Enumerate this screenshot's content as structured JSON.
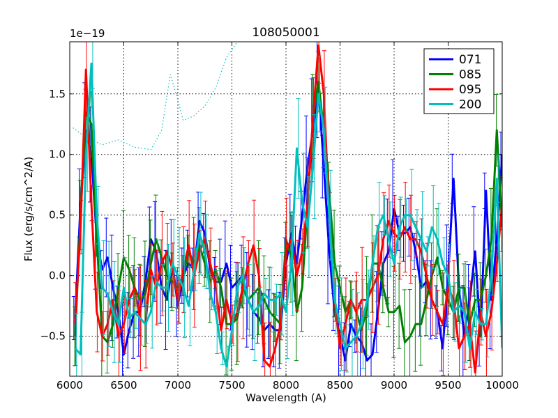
{
  "chart_data": {
    "type": "line",
    "title": "108050001",
    "xlabel": "Wavelength (A)",
    "ylabel": "Flux (erg/s/cm^2/A)",
    "offset_label": "1e−19",
    "xlim": [
      6000,
      10000
    ],
    "ylim": [
      -0.83,
      1.93
    ],
    "x_ticks": [
      6000,
      6500,
      7000,
      7500,
      8000,
      8500,
      9000,
      9500,
      10000
    ],
    "y_ticks": [
      -0.5,
      0.0,
      0.5,
      1.0,
      1.5
    ],
    "y_tick_labels": [
      "−0.5",
      "0.0",
      "0.5",
      "1.0",
      "1.5"
    ],
    "grid": true,
    "legend_position": "top-right",
    "error_bars": true,
    "sky_spectrum": {
      "style": "dotted",
      "color": "#00bfbf",
      "points": [
        [
          6030,
          1.22
        ],
        [
          6150,
          1.14
        ],
        [
          6300,
          1.08
        ],
        [
          6450,
          1.12
        ],
        [
          6600,
          1.06
        ],
        [
          6750,
          1.04
        ],
        [
          6850,
          1.2
        ],
        [
          6930,
          1.66
        ],
        [
          7000,
          1.45
        ],
        [
          7050,
          1.28
        ],
        [
          7150,
          1.32
        ],
        [
          7250,
          1.4
        ],
        [
          7350,
          1.55
        ],
        [
          7450,
          1.8
        ],
        [
          7550,
          1.93
        ]
      ]
    },
    "series": [
      {
        "name": "071",
        "color": "#0000ff",
        "x": [
          6050,
          6100,
          6150,
          6200,
          6250,
          6300,
          6350,
          6400,
          6450,
          6500,
          6550,
          6600,
          6650,
          6700,
          6750,
          6800,
          6850,
          6900,
          6950,
          7000,
          7050,
          7100,
          7150,
          7200,
          7250,
          7300,
          7350,
          7400,
          7450,
          7500,
          7550,
          7600,
          7650,
          7700,
          7750,
          7800,
          7850,
          7900,
          7950,
          8000,
          8050,
          8100,
          8150,
          8200,
          8250,
          8300,
          8350,
          8400,
          8450,
          8500,
          8550,
          8600,
          8650,
          8700,
          8750,
          8800,
          8850,
          8900,
          8950,
          9000,
          9050,
          9100,
          9150,
          9200,
          9250,
          9300,
          9350,
          9400,
          9450,
          9500,
          9550,
          9600,
          9650,
          9700,
          9750,
          9800,
          9850,
          9900,
          9950,
          10000
        ],
        "values": [
          -0.35,
          0.6,
          1.2,
          1.0,
          0.3,
          0.05,
          0.15,
          -0.1,
          -0.3,
          -0.65,
          -0.45,
          -0.3,
          -0.3,
          -0.05,
          0.3,
          0.2,
          -0.1,
          -0.2,
          0.1,
          -0.25,
          0.0,
          0.1,
          0.05,
          0.45,
          0.35,
          0.05,
          -0.05,
          -0.05,
          0.1,
          -0.1,
          -0.05,
          0.0,
          -0.2,
          -0.3,
          -0.35,
          -0.45,
          -0.4,
          -0.45,
          -0.45,
          0.1,
          0.35,
          0.1,
          0.5,
          0.9,
          1.2,
          1.55,
          0.9,
          0.2,
          -0.3,
          -0.5,
          -0.7,
          -0.4,
          -0.5,
          -0.55,
          -0.7,
          -0.65,
          -0.3,
          0.1,
          0.2,
          0.55,
          0.35,
          0.35,
          0.4,
          0.2,
          -0.1,
          -0.05,
          -0.2,
          -0.3,
          -0.6,
          0.0,
          0.8,
          -0.1,
          -0.5,
          -0.2,
          0.2,
          -0.5,
          0.7,
          -0.2,
          0.3,
          1.0
        ]
      },
      {
        "name": "085",
        "color": "#008000",
        "x": [
          6050,
          6100,
          6150,
          6200,
          6250,
          6300,
          6350,
          6400,
          6450,
          6500,
          6550,
          6600,
          6650,
          6700,
          6750,
          6800,
          6850,
          6900,
          6950,
          7000,
          7050,
          7100,
          7150,
          7200,
          7250,
          7300,
          7350,
          7400,
          7450,
          7500,
          7550,
          7600,
          7650,
          7700,
          7750,
          7800,
          7850,
          7900,
          7950,
          8000,
          8050,
          8100,
          8150,
          8200,
          8250,
          8300,
          8350,
          8400,
          8450,
          8500,
          8550,
          8600,
          8650,
          8700,
          8750,
          8800,
          8850,
          8900,
          8950,
          9000,
          9050,
          9100,
          9150,
          9200,
          9250,
          9300,
          9350,
          9400,
          9450,
          9500,
          9550,
          9600,
          9650,
          9700,
          9750,
          9800,
          9850,
          9900,
          9950,
          10000
        ],
        "values": [
          -0.5,
          0.5,
          1.35,
          1.25,
          0.3,
          -0.5,
          -0.55,
          -0.4,
          -0.1,
          0.15,
          0.05,
          -0.1,
          -0.2,
          -0.15,
          0.1,
          0.3,
          0.15,
          0.0,
          -0.05,
          -0.1,
          0.0,
          0.2,
          0.1,
          0.25,
          0.1,
          -0.05,
          0.05,
          -0.1,
          -0.4,
          -0.4,
          -0.35,
          -0.1,
          -0.2,
          -0.15,
          -0.1,
          -0.2,
          -0.3,
          -0.35,
          -0.4,
          0.3,
          0.15,
          -0.3,
          -0.1,
          0.6,
          1.3,
          1.6,
          1.2,
          0.7,
          0.1,
          -0.1,
          -0.3,
          -0.2,
          -0.3,
          -0.45,
          -0.25,
          0.1,
          0.1,
          -0.1,
          -0.3,
          -0.3,
          -0.25,
          -0.55,
          -0.5,
          -0.4,
          -0.4,
          -0.2,
          0.0,
          0.15,
          -0.1,
          -0.2,
          -0.3,
          -0.1,
          -0.1,
          -0.4,
          -0.2,
          -0.2,
          0.0,
          0.3,
          1.2,
          0.4
        ]
      },
      {
        "name": "095",
        "color": "#ff0000",
        "x": [
          6050,
          6100,
          6150,
          6200,
          6250,
          6300,
          6350,
          6400,
          6450,
          6500,
          6550,
          6600,
          6650,
          6700,
          6750,
          6800,
          6850,
          6900,
          6950,
          7000,
          7050,
          7100,
          7150,
          7200,
          7250,
          7300,
          7350,
          7400,
          7450,
          7500,
          7550,
          7600,
          7650,
          7700,
          7750,
          7800,
          7850,
          7900,
          7950,
          8000,
          8050,
          8100,
          8150,
          8200,
          8250,
          8300,
          8350,
          8400,
          8450,
          8500,
          8550,
          8600,
          8650,
          8700,
          8750,
          8800,
          8850,
          8900,
          8950,
          9000,
          9050,
          9100,
          9150,
          9200,
          9250,
          9300,
          9350,
          9400,
          9450,
          9500,
          9550,
          9600,
          9650,
          9700,
          9750,
          9800,
          9850,
          9900,
          9950,
          10000
        ],
        "values": [
          -0.4,
          0.4,
          1.7,
          0.6,
          -0.3,
          -0.5,
          -0.4,
          -0.2,
          -0.5,
          -0.4,
          -0.2,
          -0.1,
          -0.35,
          -0.4,
          0.05,
          -0.1,
          0.1,
          0.2,
          0.05,
          -0.2,
          0.05,
          0.25,
          0.0,
          0.2,
          0.3,
          0.1,
          -0.1,
          -0.45,
          -0.2,
          -0.4,
          -0.3,
          -0.1,
          0.1,
          0.25,
          0.0,
          -0.7,
          -0.75,
          -0.6,
          -0.4,
          0.2,
          0.3,
          0.0,
          0.2,
          0.6,
          1.3,
          1.9,
          1.5,
          0.5,
          -0.2,
          -0.6,
          -0.4,
          -0.2,
          -0.3,
          -0.2,
          -0.2,
          -0.1,
          0.0,
          0.3,
          0.45,
          0.35,
          0.3,
          0.4,
          0.3,
          0.3,
          0.2,
          0.0,
          -0.2,
          -0.3,
          -0.4,
          -0.1,
          -0.2,
          -0.6,
          -0.5,
          -0.4,
          -0.8,
          -0.3,
          -0.5,
          -0.3,
          0.1,
          0.6
        ]
      },
      {
        "name": "200",
        "color": "#00bfbf",
        "x": [
          6050,
          6100,
          6150,
          6200,
          6250,
          6300,
          6350,
          6400,
          6450,
          6500,
          6550,
          6600,
          6650,
          6700,
          6750,
          6800,
          6850,
          6900,
          6950,
          7000,
          7050,
          7100,
          7150,
          7200,
          7250,
          7300,
          7350,
          7400,
          7450,
          7500,
          7550,
          7600,
          7650,
          7700,
          7750,
          7800,
          7850,
          7900,
          7950,
          8000,
          8050,
          8100,
          8150,
          8200,
          8250,
          8300,
          8350,
          8400,
          8450,
          8500,
          8550,
          8600,
          8650,
          8700,
          8750,
          8800,
          8850,
          8900,
          8950,
          9000,
          9050,
          9100,
          9150,
          9200,
          9250,
          9300,
          9350,
          9400,
          9450,
          9500,
          9550,
          9600,
          9650,
          9700,
          9750,
          9800,
          9850,
          9900,
          9950,
          10000
        ],
        "values": [
          -0.6,
          -0.65,
          1.0,
          1.75,
          0.5,
          -0.1,
          -0.15,
          -0.3,
          -0.4,
          -0.1,
          -0.35,
          -0.3,
          -0.35,
          -0.4,
          -0.3,
          -0.05,
          -0.1,
          -0.1,
          0.1,
          0.0,
          -0.1,
          -0.25,
          0.05,
          0.35,
          0.2,
          -0.15,
          -0.3,
          -0.6,
          -0.75,
          -0.45,
          -0.1,
          0.0,
          -0.2,
          -0.3,
          -0.25,
          -0.15,
          -0.2,
          -0.2,
          -0.15,
          -0.3,
          0.1,
          1.05,
          0.6,
          0.4,
          0.9,
          1.5,
          1.2,
          0.5,
          -0.2,
          -0.4,
          -0.6,
          -0.55,
          -0.5,
          -0.4,
          -0.2,
          0.1,
          0.4,
          0.5,
          0.3,
          0.1,
          0.4,
          0.5,
          0.5,
          0.4,
          0.3,
          0.2,
          0.4,
          0.3,
          0.1,
          0.0,
          -0.3,
          -0.25,
          -0.3,
          -0.6,
          -0.3,
          -0.4,
          -0.4,
          0.0,
          0.8,
          -0.6
        ]
      }
    ]
  }
}
